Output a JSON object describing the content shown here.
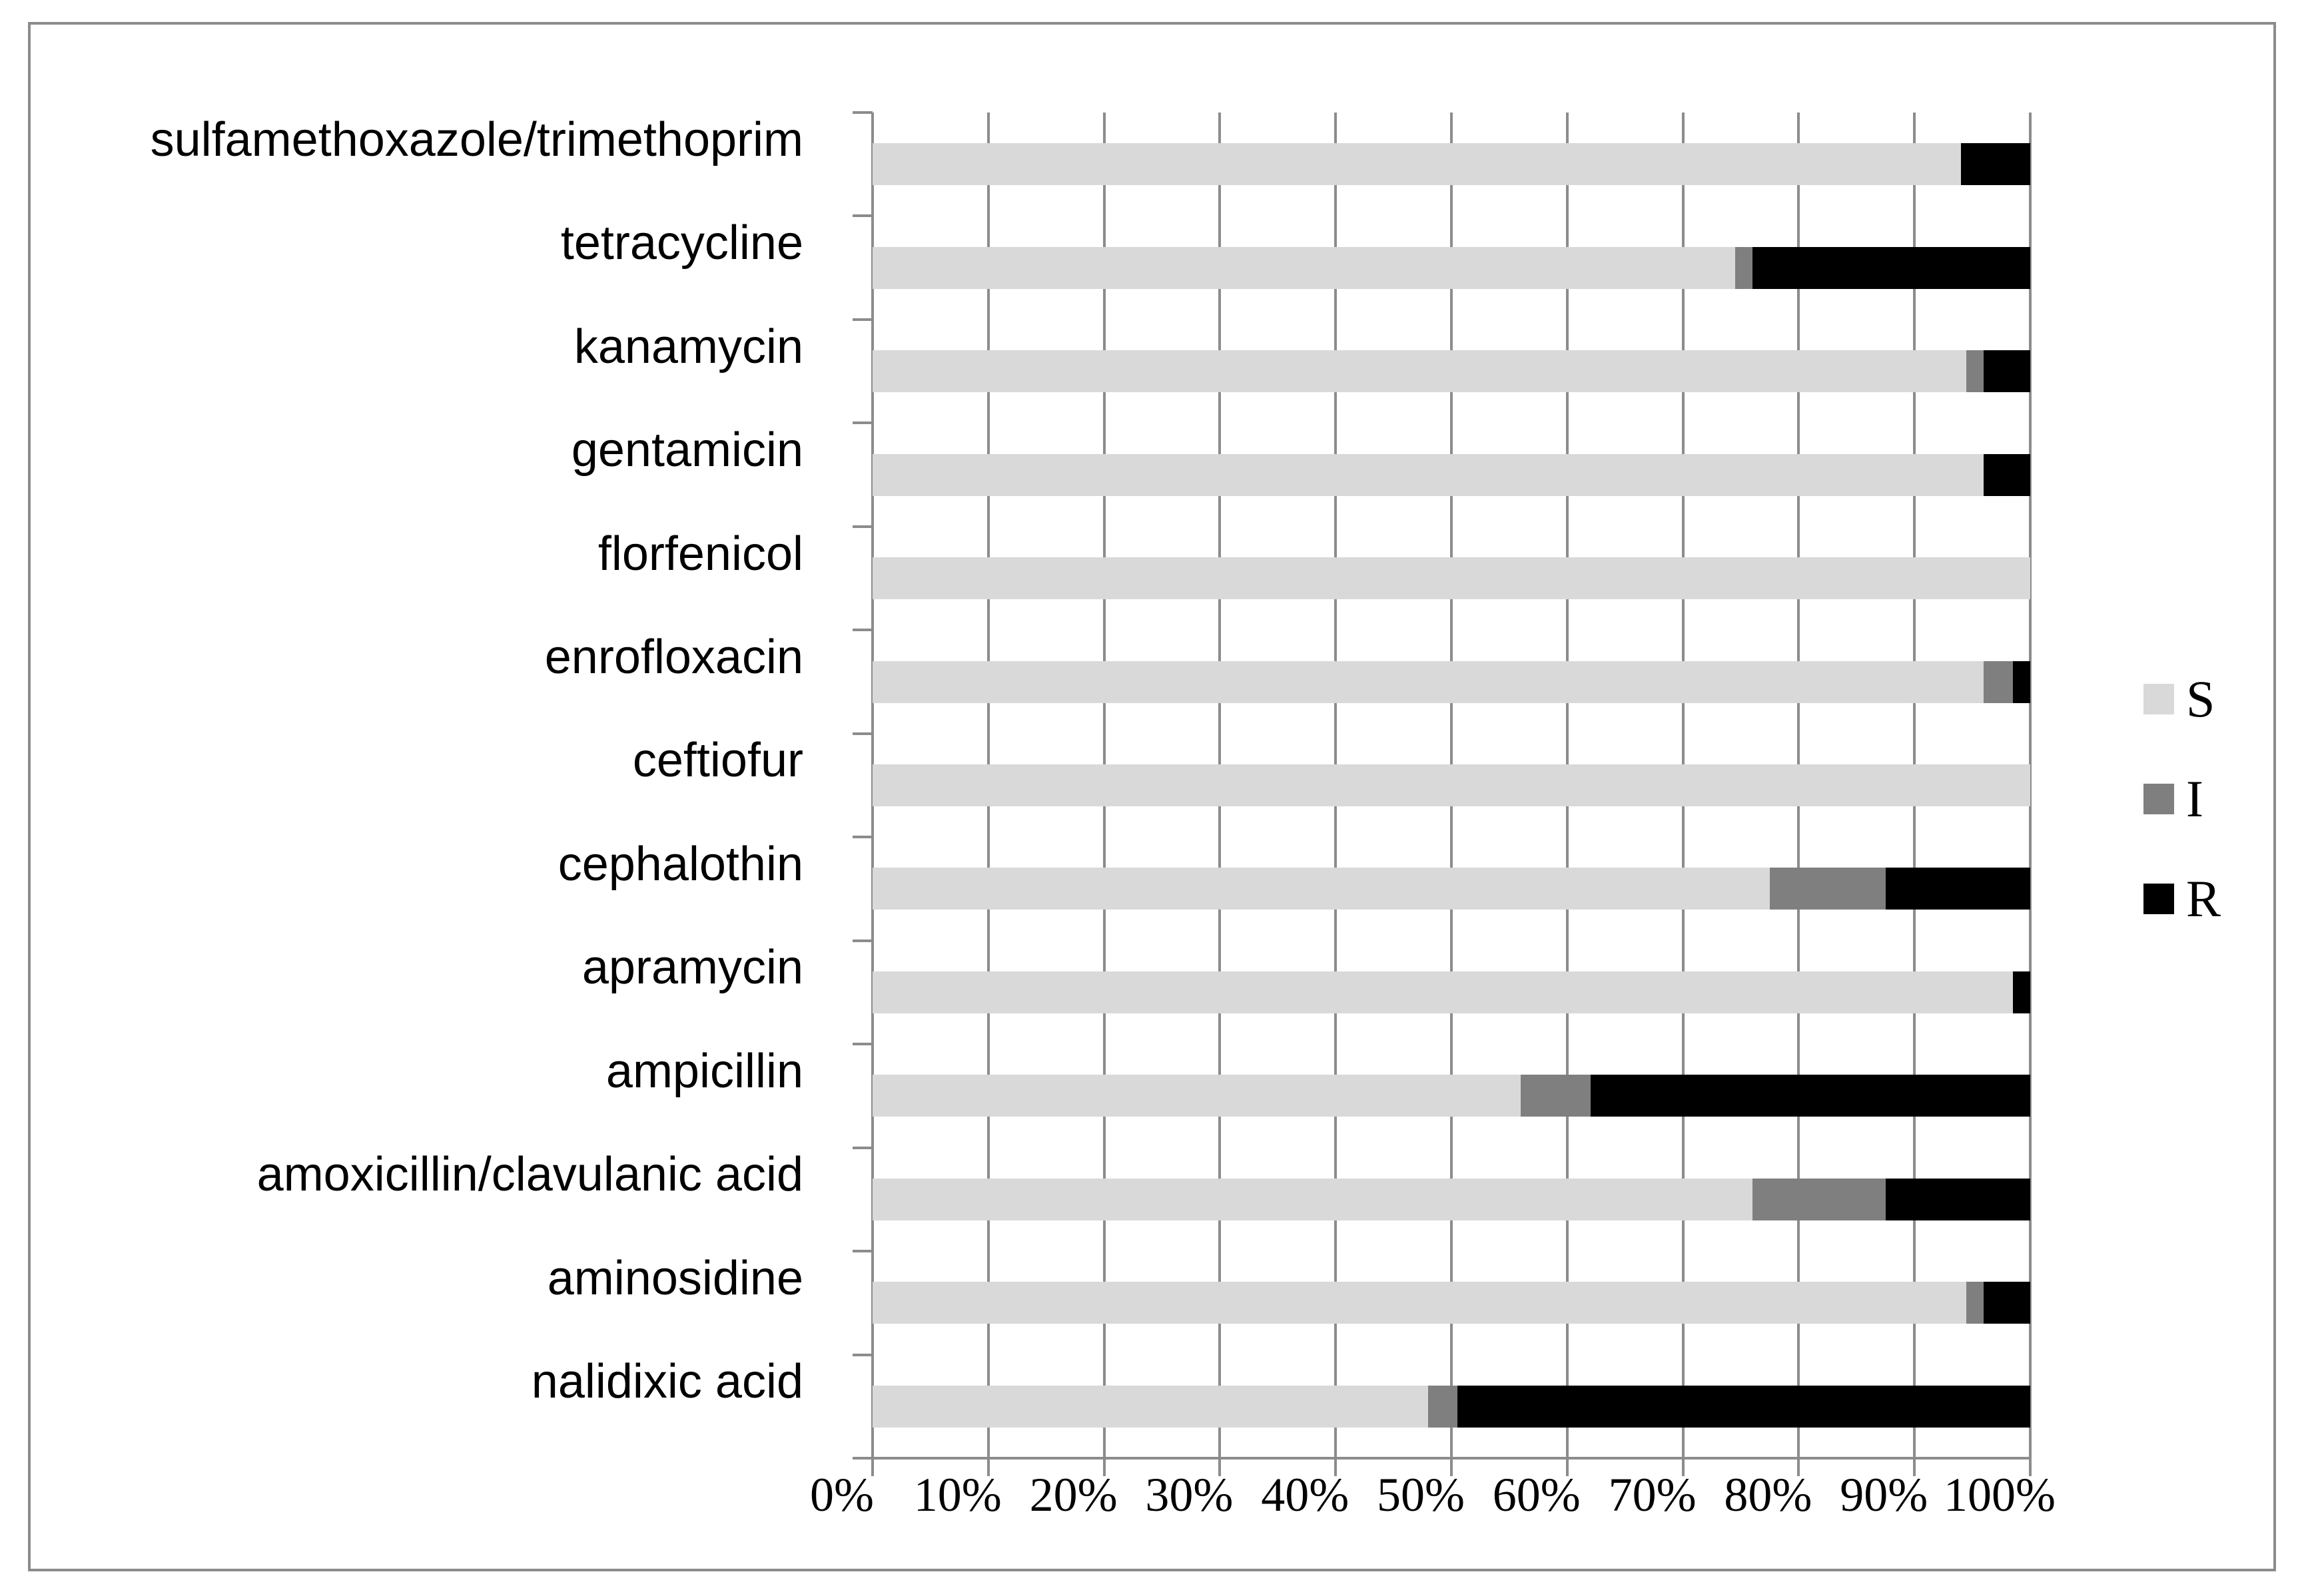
{
  "chart_data": {
    "type": "bar",
    "orientation": "horizontal",
    "stacked": true,
    "title": "",
    "xlabel": "",
    "ylabel": "",
    "xlim": [
      0,
      100
    ],
    "grid": true,
    "legend_position": "right",
    "categories": [
      "sulfamethoxazole/trimethoprim",
      "tetracycline",
      "kanamycin",
      "gentamicin",
      "florfenicol",
      "enrofloxacin",
      "ceftiofur",
      "cephalothin",
      "apramycin",
      "ampicillin",
      "amoxicillin/clavulanic acid",
      "aminosidine",
      "nalidixic acid"
    ],
    "series": [
      {
        "name": "S",
        "color": "#d9d9d9",
        "values": [
          94,
          74.5,
          94.5,
          96,
          100,
          96,
          100,
          77.5,
          98.5,
          56,
          76,
          94.5,
          48
        ]
      },
      {
        "name": "I",
        "color": "#7f7f7f",
        "values": [
          0,
          1.5,
          1.5,
          0,
          0,
          2.5,
          0,
          10,
          0,
          6,
          11.5,
          1.5,
          2.5
        ]
      },
      {
        "name": "R",
        "color": "#000000",
        "values": [
          6,
          24,
          4,
          4,
          0,
          1.5,
          0,
          12.5,
          1.5,
          38,
          12.5,
          4,
          49.5
        ]
      }
    ],
    "x_tick_labels": [
      "0%",
      "10%",
      "20%",
      "30%",
      "40%",
      "50%",
      "60%",
      "70%",
      "80%",
      "90%",
      "100%"
    ]
  },
  "legend": {
    "items": [
      {
        "label": "S",
        "color": "#d9d9d9"
      },
      {
        "label": "I",
        "color": "#7f7f7f"
      },
      {
        "label": "R",
        "color": "#000000"
      }
    ]
  },
  "colors": {
    "axis_and_grid": "#8c8c8c",
    "frame_border": "#8c8c8c",
    "background": "#ffffff",
    "text": "#000000"
  }
}
